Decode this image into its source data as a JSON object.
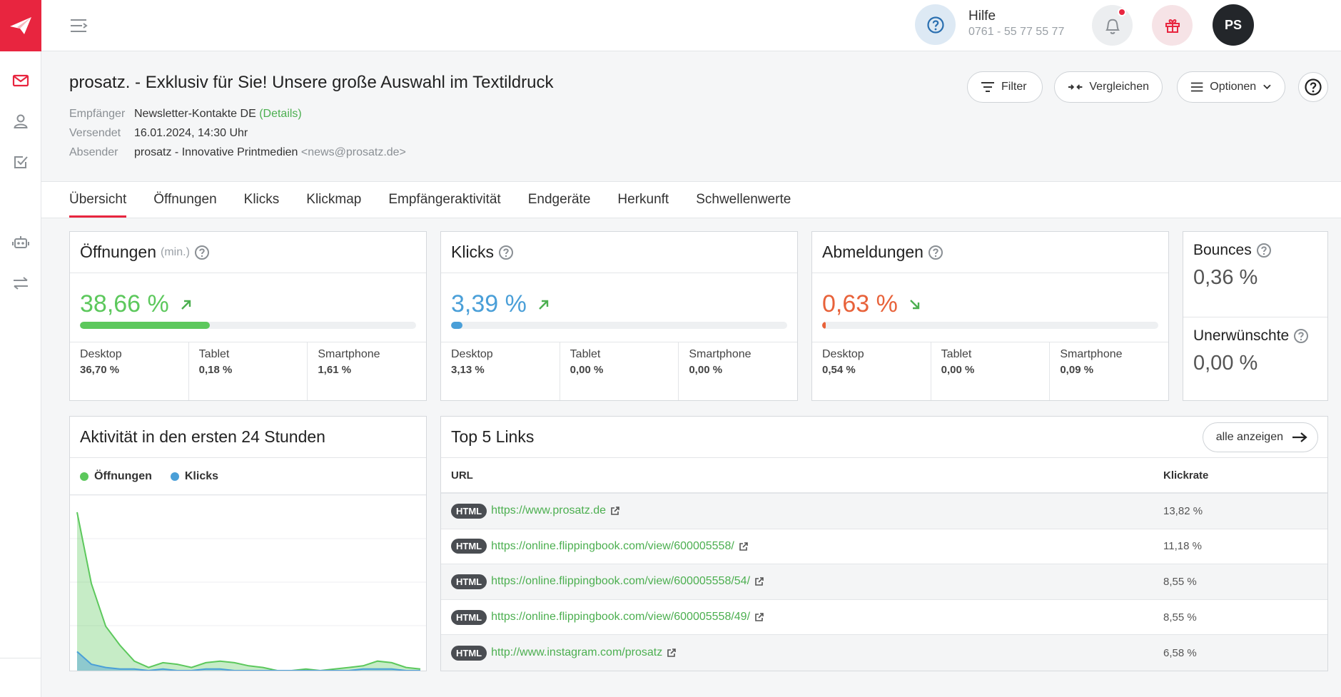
{
  "topbar": {
    "help_title": "Hilfe",
    "help_phone": "0761 - 55 77 55 77",
    "avatar_initials": "PS"
  },
  "header": {
    "title": "prosatz. - Exklusiv für Sie! Unsere große Auswahl im Textildruck",
    "recipient_label": "Empfänger",
    "recipient_value": "Newsletter-Kontakte DE",
    "recipient_link": "(Details)",
    "sent_label": "Versendet",
    "sent_value": "16.01.2024, 14:30 Uhr",
    "sender_label": "Absender",
    "sender_name": "prosatz - Innovative Printmedien",
    "sender_email": "<news@prosatz.de>",
    "filter_label": "Filter",
    "compare_label": "Vergleichen",
    "options_label": "Optionen"
  },
  "tabs": [
    "Übersicht",
    "Öffnungen",
    "Klicks",
    "Klickmap",
    "Empfängeraktivität",
    "Endgeräte",
    "Herkunft",
    "Schwellenwerte"
  ],
  "metrics": {
    "opens": {
      "title": "Öffnungen",
      "sub": "(min.)",
      "value": "38,66 %",
      "fraction": 0.3866,
      "color": "#5cc85c",
      "bar_color": "#5cc85c",
      "trend": "up",
      "devices": [
        {
          "label": "Desktop",
          "value": "36,70 %"
        },
        {
          "label": "Tablet",
          "value": "0,18 %"
        },
        {
          "label": "Smartphone",
          "value": "1,61 %"
        }
      ]
    },
    "clicks": {
      "title": "Klicks",
      "value": "3,39 %",
      "fraction": 0.0339,
      "color": "#4a9fd8",
      "bar_color": "#4a9fd8",
      "trend": "up",
      "devices": [
        {
          "label": "Desktop",
          "value": "3,13 %"
        },
        {
          "label": "Tablet",
          "value": "0,00 %"
        },
        {
          "label": "Smartphone",
          "value": "0,00 %"
        }
      ]
    },
    "unsubs": {
      "title": "Abmeldungen",
      "value": "0,63 %",
      "fraction": 0.0063,
      "color": "#e8623a",
      "bar_color": "#e8623a",
      "trend": "down",
      "devices": [
        {
          "label": "Desktop",
          "value": "0,54 %"
        },
        {
          "label": "Tablet",
          "value": "0,00 %"
        },
        {
          "label": "Smartphone",
          "value": "0,09 %"
        }
      ]
    },
    "bounces_title": "Bounces",
    "bounces_value": "0,36 %",
    "unwanted_title": "Unerwünschte",
    "unwanted_value": "0,00 %"
  },
  "activity": {
    "title": "Aktivität in den ersten 24 Stunden",
    "legend": [
      {
        "name": "Öffnungen",
        "color": "#5cc85c"
      },
      {
        "name": "Klicks",
        "color": "#4a9fd8"
      }
    ]
  },
  "chart_data": {
    "type": "area",
    "title": "Aktivität in den ersten 24 Stunden",
    "grid": true,
    "series": [
      {
        "name": "Öffnungen",
        "values": [
          100,
          55,
          28,
          16,
          6,
          2,
          5,
          4,
          2,
          5,
          6,
          5,
          3,
          2,
          0,
          0,
          1,
          0,
          1,
          2,
          3,
          6,
          5,
          2,
          1
        ]
      },
      {
        "name": "Klicks",
        "values": [
          12,
          4,
          2,
          1,
          1,
          0,
          1,
          0,
          0,
          1,
          1,
          0,
          0,
          0,
          0,
          0,
          0,
          0,
          0,
          0,
          1,
          1,
          1,
          0,
          0
        ]
      }
    ]
  },
  "links": {
    "title": "Top 5 Links",
    "all_label": "alle anzeigen",
    "col_url": "URL",
    "col_rate": "Klickrate",
    "badge": "HTML",
    "rows": [
      {
        "url": "https://www.prosatz.de",
        "rate": "13,82 %"
      },
      {
        "url": "https://online.flippingbook.com/view/600005558/",
        "rate": "11,18 %"
      },
      {
        "url": "https://online.flippingbook.com/view/600005558/54/",
        "rate": "8,55 %"
      },
      {
        "url": "https://online.flippingbook.com/view/600005558/49/",
        "rate": "8,55 %"
      },
      {
        "url": "http://www.instagram.com/prosatz",
        "rate": "6,58 %"
      }
    ]
  }
}
